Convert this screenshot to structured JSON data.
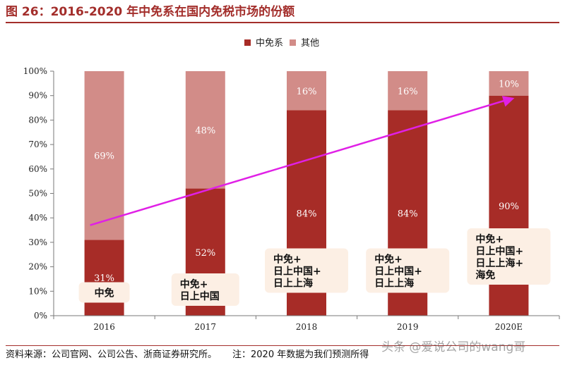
{
  "title": "图 26：2016-2020 年中免系在国内免税市场的份额",
  "footer": {
    "source": "资料来源：公司官网、公司公告、浙商证券研究所。",
    "note": "注：2020 年数据为我们预测所得"
  },
  "watermark": "头条 @爱说公司的wang哥",
  "chart_data": {
    "type": "bar",
    "stacked": true,
    "title": "2016-2020 年中免系在国内免税市场的份额",
    "categories": [
      "2016",
      "2017",
      "2018",
      "2019",
      "2020E"
    ],
    "series": [
      {
        "name": "中免系",
        "values": [
          31,
          52,
          84,
          84,
          90
        ],
        "labels": [
          "31%",
          "52%",
          "84%",
          "84%",
          "90%"
        ],
        "color": "#a72c27"
      },
      {
        "name": "其他",
        "values": [
          69,
          48,
          16,
          16,
          10
        ],
        "labels": [
          "69%",
          "48%",
          "16%",
          "16%",
          "10%"
        ],
        "color": "#d28c88"
      }
    ],
    "y_ticks": [
      "0%",
      "10%",
      "20%",
      "30%",
      "40%",
      "50%",
      "60%",
      "70%",
      "80%",
      "90%",
      "100%"
    ],
    "ylim": [
      0,
      100
    ],
    "legend_position": "top-right",
    "annotations": [
      {
        "category": "2016",
        "lines": [
          "中免"
        ]
      },
      {
        "category": "2017",
        "lines": [
          "中免+",
          "日上中国"
        ]
      },
      {
        "category": "2018",
        "lines": [
          "中免+",
          "日上中国+",
          "日上上海"
        ]
      },
      {
        "category": "2019",
        "lines": [
          "中免+",
          "日上中国+",
          "日上上海"
        ]
      },
      {
        "category": "2020E",
        "lines": [
          "中免+",
          "日上中国+",
          "日上上海+",
          "海免"
        ]
      }
    ],
    "trend_arrow": {
      "from_category": "2016",
      "from_value": 37,
      "to_category": "2020E",
      "to_value": 89,
      "color": "#e020e6"
    },
    "colors": {
      "accent": "#a32e2b",
      "annotation_bg": "#fcefe4",
      "axis": "#7a7a7a"
    }
  }
}
